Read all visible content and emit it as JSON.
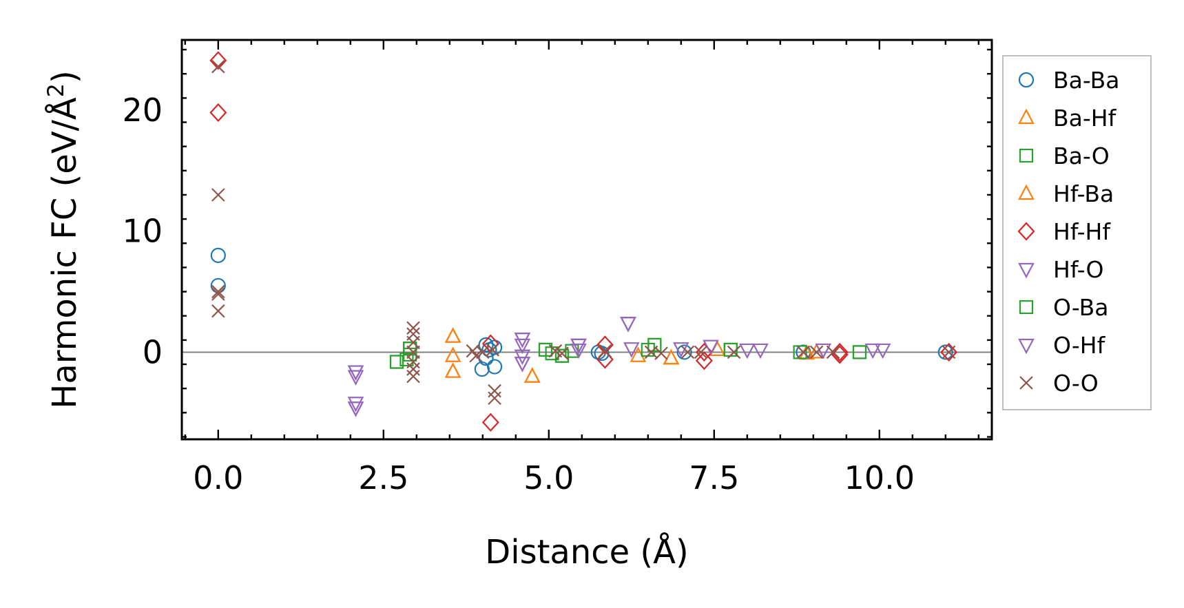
{
  "chart_data": {
    "type": "scatter",
    "title": "",
    "xlabel": "Distance (Å)",
    "ylabel_main": "Harmonic FC (eV/Å",
    "ylabel_sup": "2",
    "ylabel_close": ")",
    "xlim": [
      -0.55,
      11.7
    ],
    "ylim": [
      -7.2,
      25.8
    ],
    "x_ticks": [
      0.0,
      2.5,
      5.0,
      7.5,
      10.0
    ],
    "x_tick_labels": [
      "0.0",
      "2.5",
      "5.0",
      "7.5",
      "10.0"
    ],
    "y_ticks": [
      0,
      10,
      20
    ],
    "y_tick_labels": [
      "0",
      "10",
      "20"
    ],
    "zero_line": true,
    "grid": false,
    "legend_position": "outside-right",
    "series": [
      {
        "name": "Ba-Ba",
        "marker": "circle",
        "color": "#1f77b4",
        "points": [
          [
            0.0,
            8.0
          ],
          [
            0.0,
            5.5
          ],
          [
            3.99,
            -1.4
          ],
          [
            4.05,
            0.6
          ],
          [
            4.05,
            -0.5
          ],
          [
            4.1,
            0.2
          ],
          [
            4.18,
            -1.2
          ],
          [
            4.18,
            0.4
          ],
          [
            5.75,
            0.0
          ],
          [
            5.8,
            -0.1
          ],
          [
            7.05,
            0.0
          ],
          [
            8.85,
            0.0
          ],
          [
            11.0,
            0.0
          ]
        ]
      },
      {
        "name": "Ba-Hf",
        "marker": "triangle-up",
        "color": "#ff7f0e",
        "points": [
          [
            3.55,
            1.3
          ],
          [
            3.55,
            -0.3
          ],
          [
            3.55,
            -1.6
          ],
          [
            4.75,
            -2.0
          ],
          [
            6.35,
            -0.3
          ],
          [
            6.85,
            -0.5
          ],
          [
            7.55,
            0.2
          ],
          [
            8.9,
            -0.1
          ],
          [
            9.05,
            0.0
          ]
        ]
      },
      {
        "name": "Ba-O",
        "marker": "square",
        "color": "#2ca02c",
        "points": [
          [
            2.7,
            -0.8
          ],
          [
            2.85,
            -0.6
          ],
          [
            2.9,
            0.3
          ],
          [
            2.9,
            -0.2
          ],
          [
            4.95,
            0.2
          ],
          [
            5.05,
            -0.1
          ],
          [
            5.2,
            -0.3
          ],
          [
            5.35,
            0.1
          ],
          [
            6.5,
            0.2
          ],
          [
            6.6,
            0.6
          ],
          [
            7.75,
            0.2
          ],
          [
            8.8,
            0.0
          ],
          [
            9.7,
            0.0
          ]
        ]
      },
      {
        "name": "Hf-Ba",
        "marker": "triangle-up",
        "color": "#ff7f0e",
        "points": [
          [
            3.55,
            1.3
          ],
          [
            3.55,
            -1.6
          ],
          [
            4.75,
            -2.0
          ],
          [
            6.85,
            -0.5
          ]
        ]
      },
      {
        "name": "Hf-Hf",
        "marker": "diamond",
        "color": "#d62728",
        "points": [
          [
            0.0,
            24.1
          ],
          [
            0.0,
            19.8
          ],
          [
            4.12,
            0.7
          ],
          [
            4.12,
            -5.8
          ],
          [
            5.85,
            0.6
          ],
          [
            5.85,
            -0.6
          ],
          [
            7.35,
            -0.7
          ],
          [
            7.35,
            0.0
          ],
          [
            9.4,
            -0.2
          ],
          [
            9.4,
            0.0
          ],
          [
            11.05,
            0.0
          ]
        ]
      },
      {
        "name": "Hf-O",
        "marker": "triangle-down",
        "color": "#9467bd",
        "points": [
          [
            2.08,
            -1.6
          ],
          [
            2.08,
            -2.0
          ],
          [
            2.08,
            -4.2
          ],
          [
            2.08,
            -4.6
          ],
          [
            4.6,
            1.1
          ],
          [
            4.6,
            0.6
          ],
          [
            4.6,
            -0.3
          ],
          [
            4.6,
            -0.9
          ],
          [
            5.45,
            0.6
          ],
          [
            5.45,
            0.2
          ],
          [
            6.2,
            2.4
          ],
          [
            6.25,
            0.3
          ],
          [
            7.45,
            0.5
          ],
          [
            8.2,
            0.2
          ],
          [
            9.15,
            0.2
          ],
          [
            9.9,
            0.2
          ]
        ]
      },
      {
        "name": "O-Ba",
        "marker": "square",
        "color": "#2ca02c",
        "points": [
          [
            2.7,
            -0.8
          ],
          [
            2.9,
            0.3
          ],
          [
            4.95,
            0.2
          ],
          [
            5.2,
            -0.3
          ],
          [
            6.6,
            0.6
          ],
          [
            7.75,
            0.2
          ],
          [
            9.7,
            0.0
          ]
        ]
      },
      {
        "name": "O-Hf",
        "marker": "triangle-down",
        "color": "#9467bd",
        "points": [
          [
            2.08,
            -1.6
          ],
          [
            2.08,
            -4.6
          ],
          [
            4.6,
            1.1
          ],
          [
            4.6,
            -0.9
          ],
          [
            5.45,
            0.6
          ],
          [
            6.2,
            2.4
          ],
          [
            7.0,
            0.3
          ],
          [
            8.0,
            0.2
          ],
          [
            10.05,
            0.2
          ]
        ]
      },
      {
        "name": "O-O",
        "marker": "x",
        "color": "#8c564b",
        "points": [
          [
            0.0,
            23.6
          ],
          [
            0.0,
            13.0
          ],
          [
            0.0,
            5.0
          ],
          [
            0.0,
            4.8
          ],
          [
            0.0,
            3.4
          ],
          [
            2.95,
            2.0
          ],
          [
            2.95,
            1.5
          ],
          [
            2.95,
            0.8
          ],
          [
            2.95,
            0.0
          ],
          [
            2.95,
            -0.8
          ],
          [
            2.95,
            -1.4
          ],
          [
            2.95,
            -2.0
          ],
          [
            3.85,
            0.1
          ],
          [
            3.9,
            -0.3
          ],
          [
            4.0,
            0.0
          ],
          [
            4.15,
            0.2
          ],
          [
            4.18,
            -3.8
          ],
          [
            4.18,
            -3.2
          ],
          [
            5.1,
            0.1
          ],
          [
            5.2,
            -0.1
          ],
          [
            5.85,
            0.1
          ],
          [
            6.55,
            0.0
          ],
          [
            6.7,
            -0.1
          ],
          [
            7.1,
            0.0
          ],
          [
            7.3,
            0.0
          ],
          [
            7.8,
            0.0
          ],
          [
            8.85,
            0.0
          ],
          [
            9.05,
            0.0
          ],
          [
            9.3,
            0.0
          ],
          [
            11.05,
            0.0
          ]
        ]
      }
    ],
    "legend": [
      {
        "label": "Ba-Ba",
        "marker": "circle",
        "color": "#1f77b4"
      },
      {
        "label": "Ba-Hf",
        "marker": "triangle-up",
        "color": "#ff7f0e"
      },
      {
        "label": "Ba-O",
        "marker": "square",
        "color": "#2ca02c"
      },
      {
        "label": "Hf-Ba",
        "marker": "triangle-up",
        "color": "#ff7f0e"
      },
      {
        "label": "Hf-Hf",
        "marker": "diamond",
        "color": "#d62728"
      },
      {
        "label": "Hf-O",
        "marker": "triangle-down",
        "color": "#9467bd"
      },
      {
        "label": "O-Ba",
        "marker": "square",
        "color": "#2ca02c"
      },
      {
        "label": "O-Hf",
        "marker": "triangle-down",
        "color": "#9467bd"
      },
      {
        "label": "O-O",
        "marker": "x",
        "color": "#8c564b"
      }
    ]
  }
}
